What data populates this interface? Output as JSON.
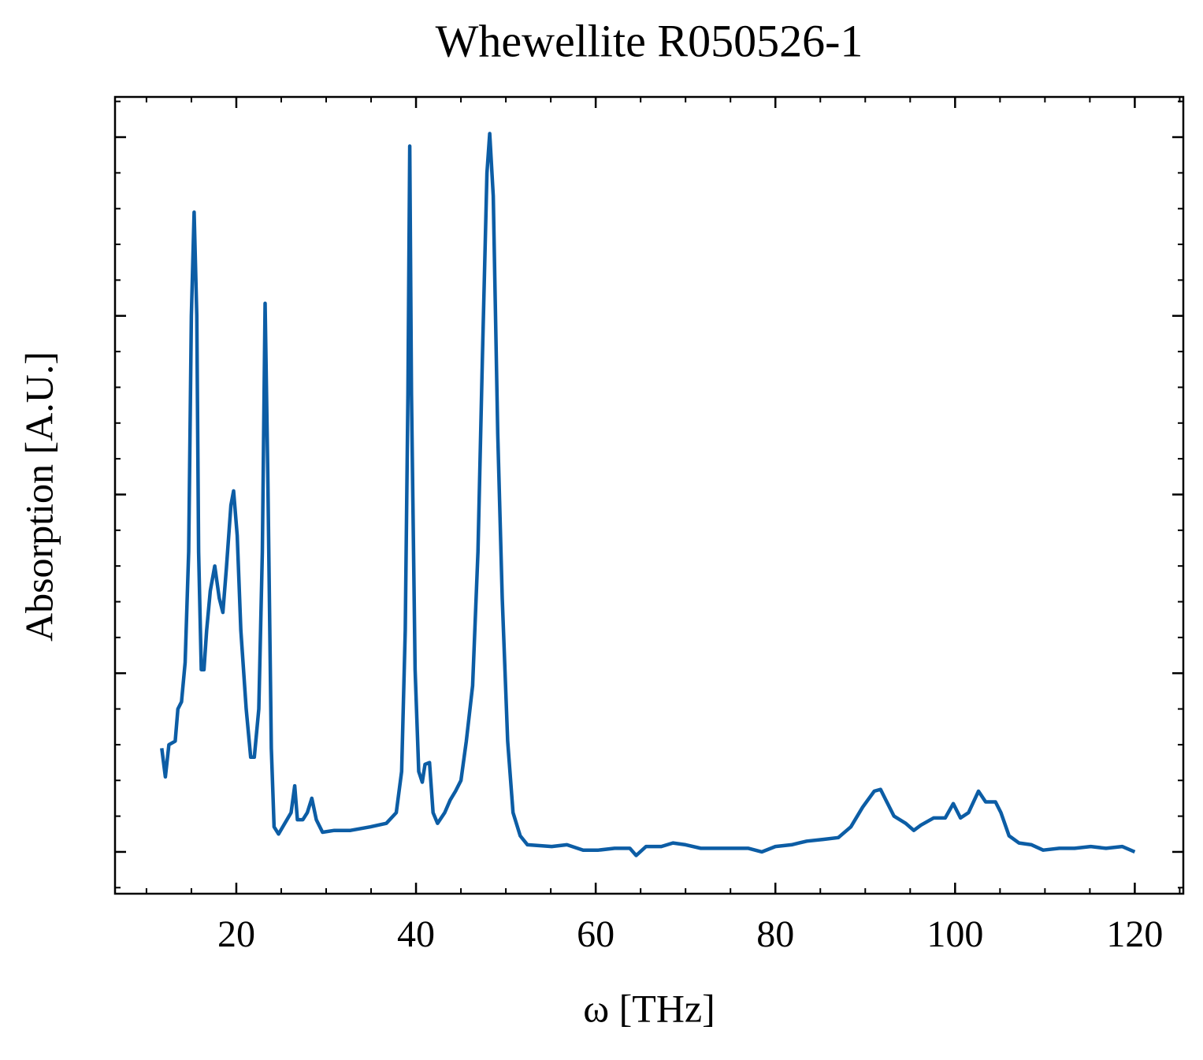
{
  "chart_data": {
    "type": "line",
    "title": "Whewellite R050526-1",
    "xlabel": "ω [THz]",
    "ylabel": "Absorption [A.U.]",
    "xlim": [
      6.5,
      125.4
    ],
    "xticks": [
      20,
      40,
      60,
      80,
      100,
      120
    ],
    "ylim": [
      -0.234,
      4.225
    ],
    "yticks": [
      0,
      1,
      2,
      3,
      4
    ],
    "series": [
      {
        "color": "#0c5da5",
        "x": [
          11.7,
          12.1,
          12.5,
          13.2,
          13.5,
          13.9,
          14.3,
          14.7,
          15.0,
          15.3,
          15.6,
          15.8,
          16.1,
          16.4,
          16.7,
          17.1,
          17.6,
          18.1,
          18.5,
          18.9,
          19.4,
          19.7,
          20.1,
          20.5,
          21.1,
          21.6,
          22.0,
          22.5,
          22.9,
          23.2,
          23.5,
          23.9,
          24.2,
          24.7,
          25.4,
          26.1,
          26.5,
          26.8,
          27.4,
          27.9,
          28.4,
          28.9,
          29.6,
          30.9,
          32.7,
          34.9,
          36.7,
          37.8,
          38.4,
          38.8,
          39.1,
          39.3,
          39.5,
          39.9,
          40.3,
          40.7,
          41.0,
          41.5,
          41.9,
          42.4,
          43.2,
          43.8,
          44.4,
          45.0,
          45.6,
          46.3,
          46.9,
          47.4,
          47.9,
          48.2,
          48.6,
          49.1,
          49.6,
          50.2,
          50.8,
          51.6,
          52.4,
          55.1,
          56.8,
          58.6,
          60.3,
          62.1,
          63.8,
          64.5,
          65.6,
          67.3,
          68.6,
          70.0,
          71.7,
          73.5,
          75.2,
          77.0,
          78.5,
          80.0,
          81.8,
          83.5,
          85.3,
          87.0,
          88.4,
          89.7,
          91.0,
          91.7,
          92.3,
          93.2,
          94.5,
          95.4,
          96.2,
          97.6,
          98.9,
          99.8,
          100.6,
          101.5,
          102.6,
          103.4,
          104.5,
          105.1,
          106.0,
          107.1,
          108.5,
          109.8,
          111.6,
          113.3,
          115.1,
          116.8,
          118.6,
          120.0
        ],
        "values": [
          0.58,
          0.42,
          0.6,
          0.62,
          0.8,
          0.84,
          1.06,
          1.68,
          3.0,
          3.58,
          3.0,
          1.68,
          1.02,
          1.02,
          1.24,
          1.46,
          1.6,
          1.42,
          1.34,
          1.59,
          1.94,
          2.02,
          1.77,
          1.24,
          0.8,
          0.53,
          0.53,
          0.8,
          1.68,
          3.07,
          2.12,
          0.58,
          0.14,
          0.1,
          0.16,
          0.22,
          0.37,
          0.18,
          0.18,
          0.22,
          0.3,
          0.18,
          0.11,
          0.12,
          0.12,
          0.14,
          0.16,
          0.22,
          0.45,
          1.24,
          2.56,
          3.95,
          2.56,
          1.02,
          0.45,
          0.39,
          0.49,
          0.5,
          0.22,
          0.16,
          0.22,
          0.29,
          0.34,
          0.4,
          0.62,
          0.93,
          1.68,
          2.78,
          3.8,
          4.02,
          3.67,
          2.34,
          1.42,
          0.62,
          0.22,
          0.09,
          0.04,
          0.03,
          0.04,
          0.01,
          0.01,
          0.02,
          0.02,
          -0.02,
          0.03,
          0.03,
          0.05,
          0.04,
          0.02,
          0.02,
          0.02,
          0.02,
          0.0,
          0.03,
          0.04,
          0.06,
          0.07,
          0.08,
          0.14,
          0.25,
          0.34,
          0.35,
          0.29,
          0.2,
          0.16,
          0.12,
          0.15,
          0.19,
          0.19,
          0.27,
          0.19,
          0.22,
          0.34,
          0.28,
          0.28,
          0.22,
          0.09,
          0.05,
          0.04,
          0.01,
          0.02,
          0.02,
          0.03,
          0.02,
          0.03,
          0.0
        ]
      }
    ]
  }
}
